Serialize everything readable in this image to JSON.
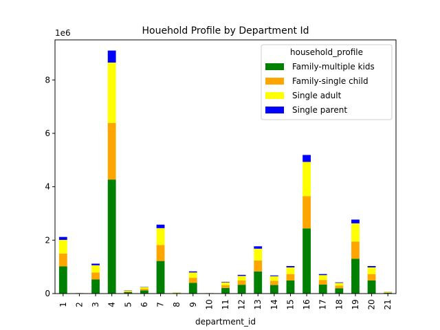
{
  "chart_data": {
    "type": "bar",
    "stacked": true,
    "title": "Houehold Profile by Department Id",
    "xlabel": "department_id",
    "ylabel": "",
    "y_offset_label": "1e6",
    "ylim": [
      0,
      9.5
    ],
    "y_unit_multiplier": 1000000,
    "yticks": [
      "0",
      "2",
      "4",
      "6",
      "8"
    ],
    "legend_title": "household_profile",
    "legend_position": "top-right",
    "grid": false,
    "categories": [
      "1",
      "2",
      "3",
      "4",
      "5",
      "6",
      "7",
      "8",
      "9",
      "10",
      "11",
      "12",
      "13",
      "14",
      "15",
      "16",
      "17",
      "18",
      "19",
      "20",
      "21"
    ],
    "series": [
      {
        "name": "Family-multiple kids",
        "color": "#008000",
        "values": [
          1.02,
          0.01,
          0.53,
          4.27,
          0.05,
          0.12,
          1.22,
          0.02,
          0.4,
          0.01,
          0.21,
          0.33,
          0.83,
          0.32,
          0.49,
          2.44,
          0.34,
          0.2,
          1.3,
          0.49,
          0.03
        ]
      },
      {
        "name": "Family-single child",
        "color": "#FFA500",
        "values": [
          0.48,
          0.005,
          0.26,
          2.12,
          0.03,
          0.06,
          0.6,
          0.01,
          0.19,
          0.005,
          0.1,
          0.16,
          0.41,
          0.16,
          0.24,
          1.21,
          0.17,
          0.1,
          0.65,
          0.24,
          0.01
        ]
      },
      {
        "name": "Single adult",
        "color": "#FFFF00",
        "values": [
          0.51,
          0.005,
          0.27,
          2.26,
          0.03,
          0.06,
          0.63,
          0.01,
          0.2,
          0.005,
          0.11,
          0.17,
          0.44,
          0.17,
          0.25,
          1.28,
          0.18,
          0.1,
          0.68,
          0.25,
          0.02
        ]
      },
      {
        "name": "Single parent",
        "color": "#0000FF",
        "values": [
          0.11,
          0.002,
          0.06,
          0.45,
          0.01,
          0.01,
          0.13,
          0.002,
          0.04,
          0.001,
          0.02,
          0.04,
          0.09,
          0.03,
          0.05,
          0.26,
          0.04,
          0.02,
          0.14,
          0.05,
          0.005
        ]
      }
    ]
  }
}
